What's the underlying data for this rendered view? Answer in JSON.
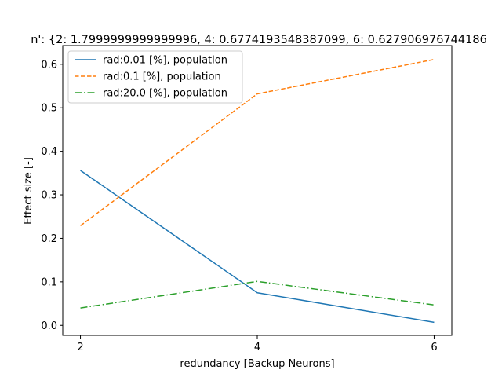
{
  "chart_data": {
    "type": "line",
    "title": "n': {2: 1.7999999999999996, 4: 0.6774193548387099, 6: 0.627906976744186",
    "xlabel": "redundancy [Backup Neurons]",
    "ylabel": "Effect size [-]",
    "x": [
      2,
      4,
      6
    ],
    "xticks": [
      "2",
      "4",
      "6"
    ],
    "yticks": [
      "0.0",
      "0.1",
      "0.2",
      "0.3",
      "0.4",
      "0.5",
      "0.6"
    ],
    "xlim": [
      1.8,
      6.2
    ],
    "ylim": [
      -0.023,
      0.643
    ],
    "grid": false,
    "legend_position": "upper-left",
    "series": [
      {
        "name": "rad:0.01 [%], population",
        "values": [
          0.356,
          0.075,
          0.007
        ],
        "color": "#1f77b4",
        "style": "solid"
      },
      {
        "name": "rad:0.1 [%], population",
        "values": [
          0.229,
          0.532,
          0.611
        ],
        "color": "#ff7f0e",
        "style": "dashed"
      },
      {
        "name": "rad:20.0 [%], population",
        "values": [
          0.04,
          0.101,
          0.047
        ],
        "color": "#2ca02c",
        "style": "dashdot"
      }
    ]
  }
}
